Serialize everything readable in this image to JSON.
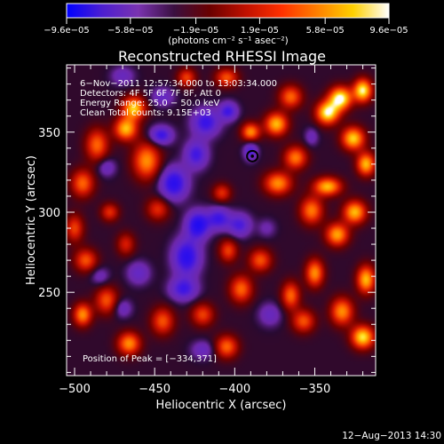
{
  "chart_data": {
    "type": "heatmap",
    "title": "Reconstructed RHESSI Image",
    "xlabel": "Heliocentric X (arcsec)",
    "ylabel": "Heliocentric Y (arcsec)",
    "xlim": [
      -505,
      -312
    ],
    "ylim": [
      198,
      392
    ],
    "x_ticks": [
      -500,
      -450,
      -400,
      -350
    ],
    "y_ticks": [
      250,
      300,
      350
    ],
    "tick_labels": {
      "x": [
        "−500",
        "−450",
        "−400",
        "−350"
      ],
      "y": [
        "250",
        "300",
        "350"
      ]
    },
    "colorbar": {
      "range": [
        -9.6e-05,
        9.6e-05
      ],
      "tick_values": [
        -9.6e-05,
        -5.8e-05,
        -1.9e-05,
        1.9e-05,
        5.8e-05,
        9.6e-05
      ],
      "tick_labels": [
        "−9.6e−05",
        "−5.8e−05",
        "−1.9e−05",
        "1.9e−05",
        "5.8e−05",
        "9.6e−05"
      ],
      "unit_label": "(photons cm⁻² s⁻¹ asec⁻²)",
      "colors": [
        "#0000ff",
        "#4d1fd0",
        "#7a33b0",
        "#3a1040",
        "#6a0000",
        "#c01000",
        "#ff3000",
        "#ff8000",
        "#ffd000",
        "#ffffff"
      ]
    },
    "annotations": [
      "6−Nov−2011 12:57:34.000 to 13:03:34.000",
      "Detectors: 4F 5F 6F 7F 8F, Att 0",
      "Energy Range: 25.0 − 50.0 keV",
      "Clean     Total counts: 9.15E+03"
    ],
    "peak_label": "Position of Peak = [−334,371]",
    "peak_position": [
      -334,
      371
    ],
    "marker_position": [
      -389,
      335
    ],
    "blobs": [
      {
        "x": -463,
        "y": 365,
        "sx": 5,
        "sy": 5,
        "a": 0.85
      },
      {
        "x": -468,
        "y": 352,
        "sx": 5,
        "sy": 5,
        "a": 0.8
      },
      {
        "x": -455,
        "y": 332,
        "sx": 6,
        "sy": 8,
        "a": 0.7
      },
      {
        "x": -486,
        "y": 342,
        "sx": 5,
        "sy": 7,
        "a": 0.6
      },
      {
        "x": -495,
        "y": 318,
        "sx": 5,
        "sy": 6,
        "a": 0.6
      },
      {
        "x": -500,
        "y": 290,
        "sx": 4,
        "sy": 6,
        "a": 0.5
      },
      {
        "x": -493,
        "y": 270,
        "sx": 5,
        "sy": 5,
        "a": 0.55
      },
      {
        "x": -480,
        "y": 245,
        "sx": 5,
        "sy": 6,
        "a": 0.55
      },
      {
        "x": -495,
        "y": 236,
        "sx": 4,
        "sy": 5,
        "a": 0.7
      },
      {
        "x": -466,
        "y": 218,
        "sx": 5,
        "sy": 5,
        "a": 0.7
      },
      {
        "x": -445,
        "y": 232,
        "sx": 5,
        "sy": 6,
        "a": 0.55
      },
      {
        "x": -420,
        "y": 236,
        "sx": 5,
        "sy": 5,
        "a": 0.5
      },
      {
        "x": -405,
        "y": 216,
        "sx": 5,
        "sy": 5,
        "a": 0.6
      },
      {
        "x": -396,
        "y": 252,
        "sx": 5,
        "sy": 6,
        "a": 0.6
      },
      {
        "x": -404,
        "y": 276,
        "sx": 4,
        "sy": 5,
        "a": 0.5
      },
      {
        "x": -384,
        "y": 270,
        "sx": 5,
        "sy": 5,
        "a": 0.55
      },
      {
        "x": -365,
        "y": 248,
        "sx": 4,
        "sy": 6,
        "a": 0.6
      },
      {
        "x": -350,
        "y": 262,
        "sx": 4,
        "sy": 6,
        "a": 0.7
      },
      {
        "x": -357,
        "y": 232,
        "sx": 5,
        "sy": 5,
        "a": 0.55
      },
      {
        "x": -333,
        "y": 238,
        "sx": 5,
        "sy": 6,
        "a": 0.7
      },
      {
        "x": -320,
        "y": 222,
        "sx": 5,
        "sy": 5,
        "a": 0.9
      },
      {
        "x": -318,
        "y": 258,
        "sx": 4,
        "sy": 6,
        "a": 0.8
      },
      {
        "x": -336,
        "y": 286,
        "sx": 5,
        "sy": 5,
        "a": 0.75
      },
      {
        "x": -325,
        "y": 300,
        "sx": 5,
        "sy": 5,
        "a": 0.8
      },
      {
        "x": -352,
        "y": 301,
        "sx": 5,
        "sy": 6,
        "a": 0.65
      },
      {
        "x": -342,
        "y": 316,
        "sx": 6,
        "sy": 4,
        "a": 0.8
      },
      {
        "x": -373,
        "y": 318,
        "sx": 6,
        "sy": 5,
        "a": 0.7
      },
      {
        "x": -362,
        "y": 334,
        "sx": 5,
        "sy": 5,
        "a": 0.65
      },
      {
        "x": -374,
        "y": 355,
        "sx": 5,
        "sy": 5,
        "a": 0.8
      },
      {
        "x": -390,
        "y": 350,
        "sx": 4,
        "sy": 4,
        "a": 0.7
      },
      {
        "x": -365,
        "y": 372,
        "sx": 5,
        "sy": 5,
        "a": 0.6
      },
      {
        "x": -342,
        "y": 362,
        "sx": 5,
        "sy": 5,
        "a": 0.95
      },
      {
        "x": -334,
        "y": 371,
        "sx": 5,
        "sy": 5,
        "a": 1.0
      },
      {
        "x": -320,
        "y": 376,
        "sx": 4,
        "sy": 5,
        "a": 0.95
      },
      {
        "x": -326,
        "y": 346,
        "sx": 5,
        "sy": 5,
        "a": 0.85
      },
      {
        "x": -318,
        "y": 330,
        "sx": 4,
        "sy": 5,
        "a": 0.8
      },
      {
        "x": -448,
        "y": 302,
        "sx": 5,
        "sy": 5,
        "a": 0.45
      },
      {
        "x": -408,
        "y": 312,
        "sx": 4,
        "sy": 4,
        "a": 0.45
      },
      {
        "x": -430,
        "y": 384,
        "sx": 4,
        "sy": 4,
        "a": 0.5
      },
      {
        "x": -405,
        "y": 384,
        "sx": 5,
        "sy": 4,
        "a": 0.55
      },
      {
        "x": -468,
        "y": 280,
        "sx": 4,
        "sy": 5,
        "a": 0.4
      },
      {
        "x": -478,
        "y": 300,
        "sx": 4,
        "sy": 4,
        "a": 0.45
      },
      {
        "x": -432,
        "y": 252,
        "sx": 6,
        "sy": 5,
        "a": -0.55
      },
      {
        "x": -430,
        "y": 272,
        "sx": 6,
        "sy": 8,
        "a": -0.7
      },
      {
        "x": -423,
        "y": 292,
        "sx": 5,
        "sy": 6,
        "a": -0.75
      },
      {
        "x": -438,
        "y": 318,
        "sx": 6,
        "sy": 7,
        "a": -0.7
      },
      {
        "x": -424,
        "y": 336,
        "sx": 5,
        "sy": 6,
        "a": -0.55
      },
      {
        "x": -446,
        "y": 348,
        "sx": 5,
        "sy": 4,
        "a": -0.6
      },
      {
        "x": -418,
        "y": 356,
        "sx": 6,
        "sy": 6,
        "a": -0.6
      },
      {
        "x": -404,
        "y": 363,
        "sx": 4,
        "sy": 4,
        "a": -0.55
      },
      {
        "x": -390,
        "y": 338,
        "sx": 3,
        "sy": 4,
        "a": -0.5
      },
      {
        "x": -410,
        "y": 296,
        "sx": 5,
        "sy": 5,
        "a": -0.55
      },
      {
        "x": -397,
        "y": 292,
        "sx": 5,
        "sy": 5,
        "a": -0.5
      },
      {
        "x": -460,
        "y": 262,
        "sx": 5,
        "sy": 5,
        "a": -0.35
      },
      {
        "x": -484,
        "y": 260,
        "sx": 4,
        "sy": 4,
        "a": -0.25
      },
      {
        "x": -480,
        "y": 328,
        "sx": 4,
        "sy": 4,
        "a": -0.3
      },
      {
        "x": -470,
        "y": 385,
        "sx": 5,
        "sy": 4,
        "a": -0.3
      },
      {
        "x": -445,
        "y": 372,
        "sx": 5,
        "sy": 4,
        "a": -0.35
      },
      {
        "x": -378,
        "y": 236,
        "sx": 5,
        "sy": 5,
        "a": -0.3
      },
      {
        "x": -420,
        "y": 214,
        "sx": 5,
        "sy": 4,
        "a": -0.3
      },
      {
        "x": -470,
        "y": 240,
        "sx": 4,
        "sy": 4,
        "a": -0.3
      },
      {
        "x": -352,
        "y": 347,
        "sx": 3,
        "sy": 4,
        "a": -0.25
      },
      {
        "x": -380,
        "y": 290,
        "sx": 4,
        "sy": 4,
        "a": -0.2
      }
    ]
  },
  "footer": {
    "date": "12−Aug−2013 14:30"
  },
  "colors": {
    "background": "#000000",
    "foreground": "#ffffff",
    "marker": "#000000"
  }
}
